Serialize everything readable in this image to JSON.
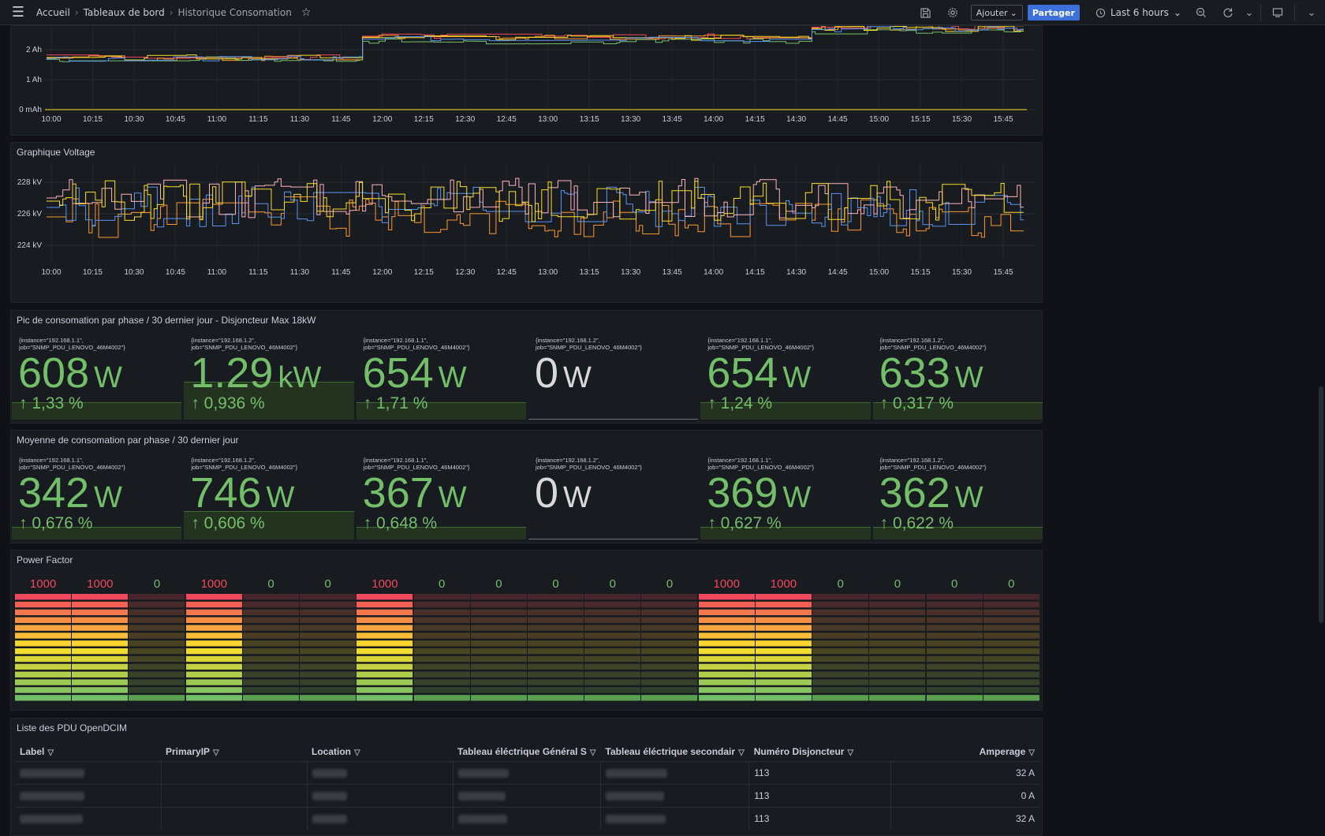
{
  "breadcrumb": {
    "home": "Accueil",
    "dashboards": "Tableaux de bord",
    "current": "Historique Consomation"
  },
  "toolbar": {
    "add_label": "Ajouter",
    "share_label": "Partager",
    "time_range": "Last 6 hours"
  },
  "time_ticks": [
    "10:00",
    "10:15",
    "10:30",
    "10:45",
    "11:00",
    "11:15",
    "11:30",
    "11:45",
    "12:00",
    "12:15",
    "12:30",
    "12:45",
    "13:00",
    "13:15",
    "13:30",
    "13:45",
    "14:00",
    "14:15",
    "14:30",
    "14:45",
    "15:00",
    "15:15",
    "15:30",
    "15:45"
  ],
  "current_panel": {
    "y_ticks": [
      "2 Ah",
      "1 Ah",
      "0 mAh"
    ]
  },
  "voltage_panel": {
    "title": "Graphique Voltage",
    "y_ticks": [
      "228 kV",
      "226 kV",
      "224 kV"
    ]
  },
  "series_colors": [
    "#f2495c",
    "#ff9830",
    "#73bf69",
    "#fade2a",
    "#5794f2",
    "#b877d9",
    "#ffb3b8"
  ],
  "peak_panel": {
    "title": "Pic de consomation par phase / 30 dernier jour - Disjoncteur Max 18kW",
    "stats": [
      {
        "label": "{instance=\"192.168.1.1\", job=\"SNMP_PDU_LENOVO_46M4002\"}",
        "num": "608",
        "unit": "W",
        "change": "1,33 %",
        "fill": 0.2
      },
      {
        "label": "{instance=\"192.168.1.2\", job=\"SNMP_PDU_LENOVO_46M4002\"}",
        "num": "1.29",
        "unit": "kW",
        "change": "0,936 %",
        "fill": 0.44
      },
      {
        "label": "{instance=\"192.168.1.1\", job=\"SNMP_PDU_LENOVO_46M4002\"}",
        "num": "654",
        "unit": "W",
        "change": "1,71 %",
        "fill": 0.2
      },
      {
        "label": "{instance=\"192.168.1.2\", job=\"SNMP_PDU_LENOVO_46M4002\"}",
        "num": "0",
        "unit": "W",
        "change": "",
        "fill": 0
      },
      {
        "label": "{instance=\"192.168.1.1\", job=\"SNMP_PDU_LENOVO_46M4002\"}",
        "num": "654",
        "unit": "W",
        "change": "1,24 %",
        "fill": 0.2
      },
      {
        "label": "{instance=\"192.168.1.2\", job=\"SNMP_PDU_LENOVO_46M4002\"}",
        "num": "633",
        "unit": "W",
        "change": "0,317 %",
        "fill": 0.2
      }
    ]
  },
  "avg_panel": {
    "title": "Moyenne de consomation par phase / 30 dernier jour",
    "stats": [
      {
        "label": "{instance=\"192.168.1.1\", job=\"SNMP_PDU_LENOVO_46M4002\"}",
        "num": "342",
        "unit": "W",
        "change": "0,676 %",
        "fill": 0.15
      },
      {
        "label": "{instance=\"192.168.1.2\", job=\"SNMP_PDU_LENOVO_46M4002\"}",
        "num": "746",
        "unit": "W",
        "change": "0,606 %",
        "fill": 0.33
      },
      {
        "label": "{instance=\"192.168.1.1\", job=\"SNMP_PDU_LENOVO_46M4002\"}",
        "num": "367",
        "unit": "W",
        "change": "0,648 %",
        "fill": 0.15
      },
      {
        "label": "{instance=\"192.168.1.2\", job=\"SNMP_PDU_LENOVO_46M4002\"}",
        "num": "0",
        "unit": "W",
        "change": "",
        "fill": 0
      },
      {
        "label": "{instance=\"192.168.1.1\", job=\"SNMP_PDU_LENOVO_46M4002\"}",
        "num": "369",
        "unit": "W",
        "change": "0,627 %",
        "fill": 0.15
      },
      {
        "label": "{instance=\"192.168.1.2\", job=\"SNMP_PDU_LENOVO_46M4002\"}",
        "num": "362",
        "unit": "W",
        "change": "0,622 %",
        "fill": 0.15
      }
    ]
  },
  "power_factor_panel": {
    "title": "Power Factor",
    "values": [
      "1000",
      "1000",
      "0",
      "1000",
      "0",
      "0",
      "1000",
      "0",
      "0",
      "0",
      "0",
      "0",
      "1000",
      "1000",
      "0",
      "0",
      "0",
      "0"
    ],
    "max": 1000,
    "high_color": "#f2495c",
    "low_color": "#73bf69"
  },
  "pdu_table": {
    "title": "Liste des PDU OpenDCIM",
    "columns": [
      "Label",
      "PrimaryIP",
      "Location",
      "Tableau éléctrique Général S",
      "Tableau éléctrique secondair",
      "Numéro Disjoncteur",
      "Amperage"
    ],
    "rows": [
      {
        "disjoncteur": "113",
        "amperage": "32 A"
      },
      {
        "disjoncteur": "113",
        "amperage": "0 A"
      },
      {
        "disjoncteur": "113",
        "amperage": "32 A"
      }
    ]
  }
}
